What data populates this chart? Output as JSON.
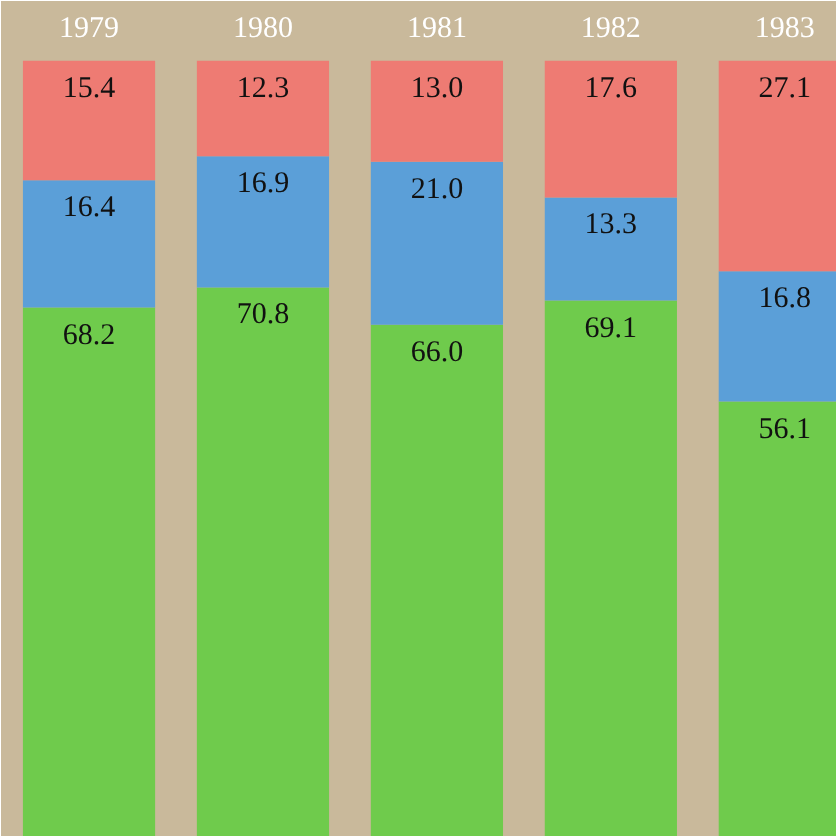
{
  "chart_data": {
    "type": "bar",
    "stacked": true,
    "categories": [
      "1979",
      "1980",
      "1981",
      "1982",
      "1983"
    ],
    "series": [
      {
        "color": "#6fcb4c",
        "values": [
          68.2,
          70.8,
          66.0,
          69.1,
          56.1
        ],
        "value_labels": [
          "68.2",
          "70.8",
          "66.0",
          "69.1",
          "56.1"
        ]
      },
      {
        "color": "#5b9fd8",
        "values": [
          16.4,
          16.9,
          21.0,
          13.3,
          16.8
        ],
        "value_labels": [
          "16.4",
          "16.9",
          "21.0",
          "13.3",
          "16.8"
        ]
      },
      {
        "color": "#ee7b73",
        "values": [
          15.4,
          12.3,
          13.0,
          17.6,
          27.1
        ],
        "value_labels": [
          "15.4",
          "12.3",
          "13.0",
          "17.6",
          "27.1"
        ]
      }
    ]
  }
}
